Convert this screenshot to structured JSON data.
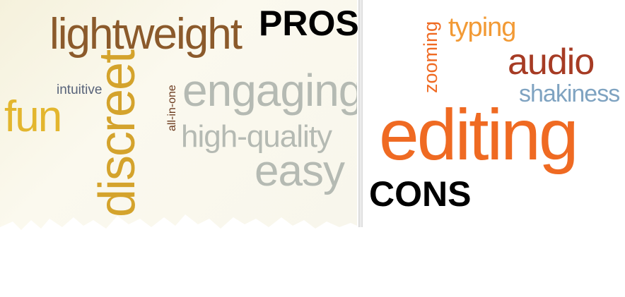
{
  "pros": {
    "heading": "PROS",
    "words": {
      "lightweight": "lightweight",
      "intuitive": "intuitive",
      "fun": "fun",
      "discreet": "discreet",
      "all_in_one": "all-in-one",
      "engaging": "engaging",
      "high_quality": "high-quality",
      "easy": "easy"
    }
  },
  "cons": {
    "heading": "CONS",
    "words": {
      "zooming": "zooming",
      "typing": "typing",
      "audio": "audio",
      "shakiness": "shakiness",
      "editing": "editing"
    }
  },
  "colors": {
    "brown": "#8b5a2b",
    "dark_brown": "#6b3a1e",
    "gold": "#e3b62e",
    "mustard": "#d4a32c",
    "slate": "#58637a",
    "grey": "#b5bab3",
    "orange": "#ef6a22",
    "light_orange": "#f29a35",
    "rust": "#a63b24",
    "steel_blue": "#7fa3c1"
  }
}
